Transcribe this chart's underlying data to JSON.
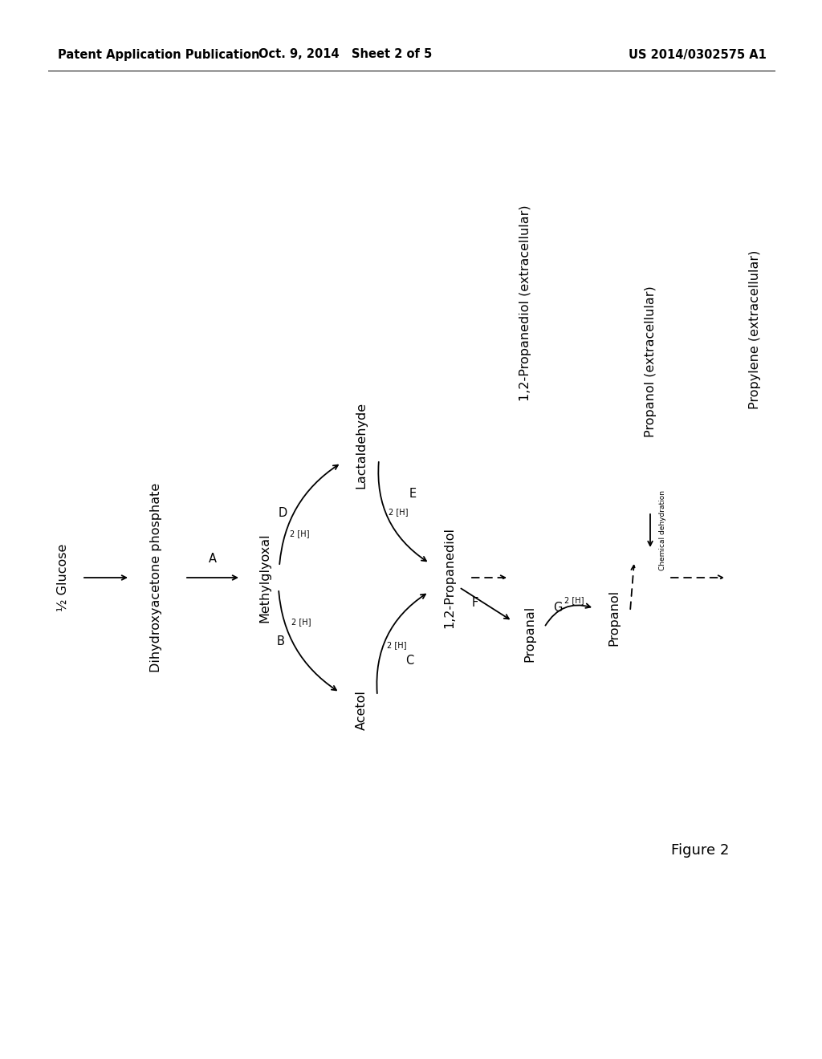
{
  "bg_color": "#ffffff",
  "header_left": "Patent Application Publication",
  "header_mid": "Oct. 9, 2014   Sheet 2 of 5",
  "header_right": "US 2014/0302575 A1",
  "figure_label": "Figure 2",
  "main_fontsize": 11.5,
  "small_fontsize": 7.0,
  "label_fontsize": 10.5,
  "header_fontsize": 10.5
}
